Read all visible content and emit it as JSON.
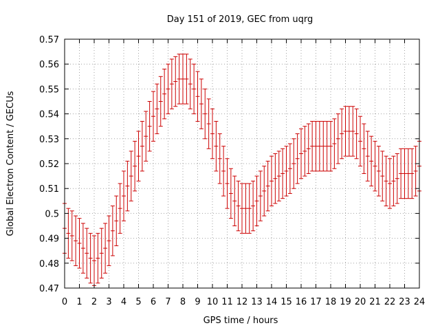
{
  "chart_data": {
    "type": "line",
    "title": "Day 151 of 2019, GEC from uqrg",
    "xlabel": "GPS time / hours",
    "ylabel": "Global Electron Content / GECUs",
    "xlim": [
      0,
      24
    ],
    "ylim": [
      0.47,
      0.57
    ],
    "x_ticks": [
      "0",
      "1",
      "2",
      "3",
      "4",
      "5",
      "6",
      "7",
      "8",
      "9",
      "10",
      "11",
      "12",
      "13",
      "14",
      "15",
      "16",
      "17",
      "18",
      "19",
      "20",
      "21",
      "22",
      "23",
      "24"
    ],
    "y_ticks": [
      "0.47",
      "0.48",
      "0.49",
      "0.5",
      "0.51",
      "0.52",
      "0.53",
      "0.54",
      "0.55",
      "0.56",
      "0.57"
    ],
    "grid": true,
    "colors": {
      "series": "#cc0000",
      "grid": "#a0a0a0",
      "axes": "#000000"
    },
    "series": [
      {
        "error_bar": "±0.01",
        "x": [
          0,
          0.25,
          0.5,
          0.75,
          1,
          1.25,
          1.5,
          1.75,
          2,
          2.25,
          2.5,
          2.75,
          3,
          3.25,
          3.5,
          3.75,
          4,
          4.25,
          4.5,
          4.75,
          5,
          5.25,
          5.5,
          5.75,
          6,
          6.25,
          6.5,
          6.75,
          7,
          7.25,
          7.5,
          7.75,
          8,
          8.25,
          8.5,
          8.75,
          9,
          9.25,
          9.5,
          9.75,
          10,
          10.25,
          10.5,
          10.75,
          11,
          11.25,
          11.5,
          11.75,
          12,
          12.25,
          12.5,
          12.75,
          13,
          13.25,
          13.5,
          13.75,
          14,
          14.25,
          14.5,
          14.75,
          15,
          15.25,
          15.5,
          15.75,
          16,
          16.25,
          16.5,
          16.75,
          17,
          17.25,
          17.5,
          17.75,
          18,
          18.25,
          18.5,
          18.75,
          19,
          19.25,
          19.5,
          19.75,
          20,
          20.25,
          20.5,
          20.75,
          21,
          21.25,
          21.5,
          21.75,
          22,
          22.25,
          22.5,
          22.75,
          23,
          23.25,
          23.5,
          23.75,
          24
        ],
        "y": [
          0.494,
          0.492,
          0.491,
          0.489,
          0.488,
          0.486,
          0.484,
          0.482,
          0.481,
          0.482,
          0.484,
          0.486,
          0.489,
          0.493,
          0.497,
          0.502,
          0.507,
          0.511,
          0.515,
          0.519,
          0.523,
          0.527,
          0.531,
          0.535,
          0.539,
          0.542,
          0.545,
          0.548,
          0.55,
          0.552,
          0.553,
          0.554,
          0.554,
          0.554,
          0.552,
          0.55,
          0.547,
          0.544,
          0.54,
          0.536,
          0.532,
          0.527,
          0.522,
          0.517,
          0.512,
          0.508,
          0.505,
          0.503,
          0.502,
          0.502,
          0.502,
          0.503,
          0.505,
          0.507,
          0.509,
          0.511,
          0.513,
          0.514,
          0.515,
          0.516,
          0.517,
          0.518,
          0.52,
          0.522,
          0.524,
          0.525,
          0.526,
          0.527,
          0.527,
          0.527,
          0.527,
          0.527,
          0.527,
          0.528,
          0.53,
          0.532,
          0.533,
          0.533,
          0.533,
          0.532,
          0.529,
          0.526,
          0.523,
          0.521,
          0.519,
          0.517,
          0.515,
          0.513,
          0.512,
          0.513,
          0.514,
          0.516,
          0.516,
          0.516,
          0.516,
          0.517,
          0.519
        ]
      }
    ]
  }
}
